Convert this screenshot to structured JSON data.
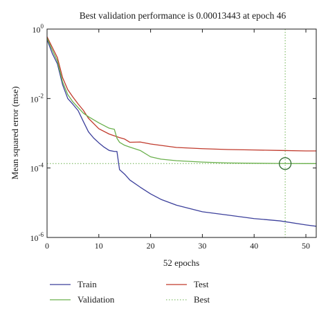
{
  "chart_data": {
    "type": "line",
    "title": "Best validation performance is 0.00013443 at epoch 46",
    "xlabel": "52 epochs",
    "ylabel": "Mean squared error (mse)",
    "xlim": [
      0,
      52
    ],
    "ylim": [
      1e-06,
      1
    ],
    "yscale": "log",
    "grid": false,
    "legend_position": "bottom",
    "x_ticks": [
      0,
      10,
      20,
      30,
      40,
      50
    ],
    "y_ticks": [
      {
        "value": 1e-06,
        "base": "10",
        "exp": "-6"
      },
      {
        "value": 0.0001,
        "base": "10",
        "exp": "-4"
      },
      {
        "value": 0.01,
        "base": "10",
        "exp": "-2"
      },
      {
        "value": 1,
        "base": "10",
        "exp": "0"
      }
    ],
    "best": {
      "epoch": 46,
      "value": 0.00013443
    },
    "series": [
      {
        "name": "Train",
        "color": "#3b3f9b",
        "x": [
          0,
          1,
          2,
          3,
          4,
          5,
          6,
          7,
          8,
          9,
          10,
          11,
          12,
          13,
          13.5,
          14,
          15,
          16,
          18,
          20,
          22,
          25,
          30,
          35,
          40,
          45,
          50,
          52
        ],
        "y": [
          0.5,
          0.2,
          0.1,
          0.025,
          0.01,
          0.0068,
          0.0045,
          0.0022,
          0.0011,
          0.00073,
          0.00053,
          0.0004,
          0.00032,
          0.0003,
          0.0003,
          9e-05,
          6.6e-05,
          4.5e-05,
          2.8e-05,
          1.8e-05,
          1.25e-05,
          8.5e-06,
          5.5e-06,
          4.4e-06,
          3.5e-06,
          3e-06,
          2.3e-06,
          2.1e-06
        ]
      },
      {
        "name": "Test",
        "color": "#c0392b",
        "x": [
          0,
          1,
          2,
          3,
          4,
          5,
          6,
          7,
          8,
          10,
          12,
          14,
          15,
          16,
          18,
          20,
          25,
          30,
          35,
          40,
          45,
          50,
          52
        ],
        "y": [
          0.6,
          0.3,
          0.15,
          0.04,
          0.018,
          0.011,
          0.007,
          0.0046,
          0.0027,
          0.00135,
          0.00095,
          0.00075,
          0.00068,
          0.00055,
          0.00056,
          0.00049,
          0.00039,
          0.00036,
          0.00034,
          0.00033,
          0.00032,
          0.00031,
          0.00031
        ]
      },
      {
        "name": "Validation",
        "color": "#6ab04c",
        "x": [
          0,
          1,
          2,
          3,
          4,
          5,
          6,
          7,
          8,
          10,
          12,
          13,
          13.5,
          14,
          15,
          16,
          18,
          20,
          22,
          25,
          30,
          35,
          40,
          45,
          46,
          50,
          52
        ],
        "y": [
          0.55,
          0.25,
          0.12,
          0.03,
          0.013,
          0.008,
          0.0055,
          0.0038,
          0.003,
          0.002,
          0.0014,
          0.0013,
          0.00072,
          0.00055,
          0.00045,
          0.0004,
          0.00032,
          0.00021,
          0.00018,
          0.000162,
          0.000148,
          0.00014,
          0.000137,
          0.000135,
          0.00013443,
          0.000134,
          0.000134
        ]
      }
    ],
    "legend": [
      {
        "label": "Train",
        "color": "#3b3f9b",
        "style": "solid"
      },
      {
        "label": "Test",
        "color": "#c0392b",
        "style": "solid"
      },
      {
        "label": "Validation",
        "color": "#6ab04c",
        "style": "solid"
      },
      {
        "label": "Best",
        "color": "#6ab04c",
        "style": "dotted"
      }
    ]
  }
}
